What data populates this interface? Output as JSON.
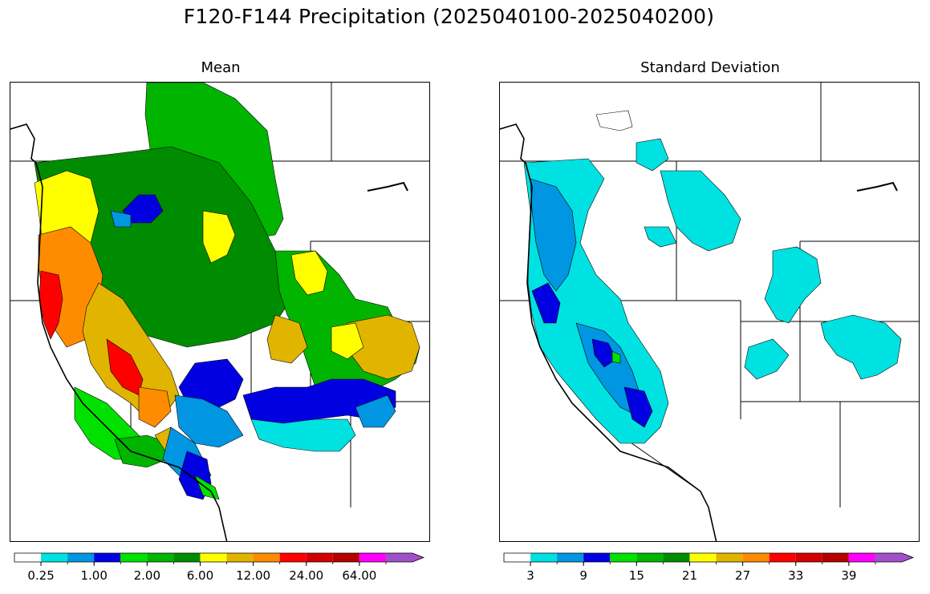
{
  "figure": {
    "title": "F120-F144 Precipitation (2025040100-2025040200)"
  },
  "panels": [
    {
      "id": "mean",
      "title": "Mean",
      "colorbar": {
        "colors": [
          "#ffffff",
          "#00e1e1",
          "#0096e1",
          "#0000e1",
          "#00e100",
          "#00b400",
          "#008c00",
          "#ffff00",
          "#e1b400",
          "#ff8c00",
          "#ff0000",
          "#d20000",
          "#b40000",
          "#ff00ff",
          "#a050c8"
        ],
        "tick_labels": [
          "0.25",
          "1.00",
          "2.00",
          "6.00",
          "12.00",
          "24.00",
          "64.00"
        ],
        "labeled_bins": [
          1,
          3,
          5,
          7,
          9,
          11,
          13
        ],
        "extend": "max"
      }
    },
    {
      "id": "stdev",
      "title": "Standard Deviation",
      "colorbar": {
        "colors": [
          "#ffffff",
          "#00e1e1",
          "#0096e1",
          "#0000e1",
          "#00e100",
          "#00b400",
          "#008c00",
          "#ffff00",
          "#e1b400",
          "#ff8c00",
          "#ff0000",
          "#d20000",
          "#b40000",
          "#ff00ff",
          "#a050c8"
        ],
        "tick_labels": [
          "3",
          "9",
          "15",
          "21",
          "27",
          "33",
          "39"
        ],
        "labeled_bins": [
          1,
          3,
          5,
          7,
          9,
          11,
          13
        ],
        "extend": "max"
      }
    }
  ]
}
